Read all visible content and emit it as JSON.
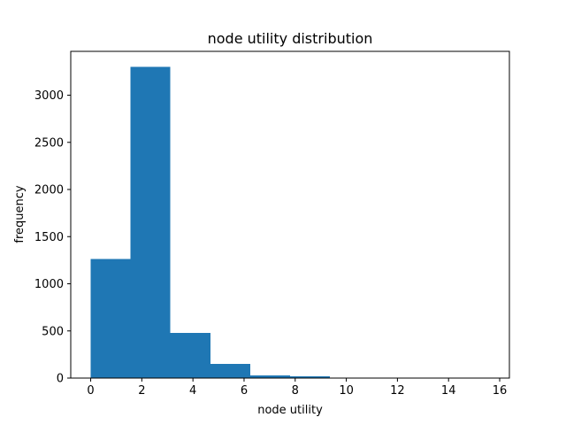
{
  "chart_data": {
    "type": "bar",
    "title": "node utility distribution",
    "xlabel": "node utility",
    "ylabel": "frequency",
    "xlim": [
      -0.78,
      16.38
    ],
    "ylim": [
      0,
      3465
    ],
    "xticks": [
      0,
      2,
      4,
      6,
      8,
      10,
      12,
      14,
      16
    ],
    "yticks": [
      0,
      500,
      1000,
      1500,
      2000,
      2500,
      3000
    ],
    "bar_color": "#1f77b4",
    "bins": [
      {
        "x0": 0.0,
        "x1": 1.56,
        "value": 1265
      },
      {
        "x0": 1.56,
        "x1": 3.12,
        "value": 3300
      },
      {
        "x0": 3.12,
        "x1": 4.68,
        "value": 480
      },
      {
        "x0": 4.68,
        "x1": 6.24,
        "value": 150
      },
      {
        "x0": 6.24,
        "x1": 7.8,
        "value": 30
      },
      {
        "x0": 7.8,
        "x1": 9.36,
        "value": 20
      },
      {
        "x0": 9.36,
        "x1": 10.92,
        "value": 3
      },
      {
        "x0": 10.92,
        "x1": 12.48,
        "value": 1
      },
      {
        "x0": 12.48,
        "x1": 14.04,
        "value": 1
      },
      {
        "x0": 14.04,
        "x1": 15.6,
        "value": 1
      }
    ]
  }
}
